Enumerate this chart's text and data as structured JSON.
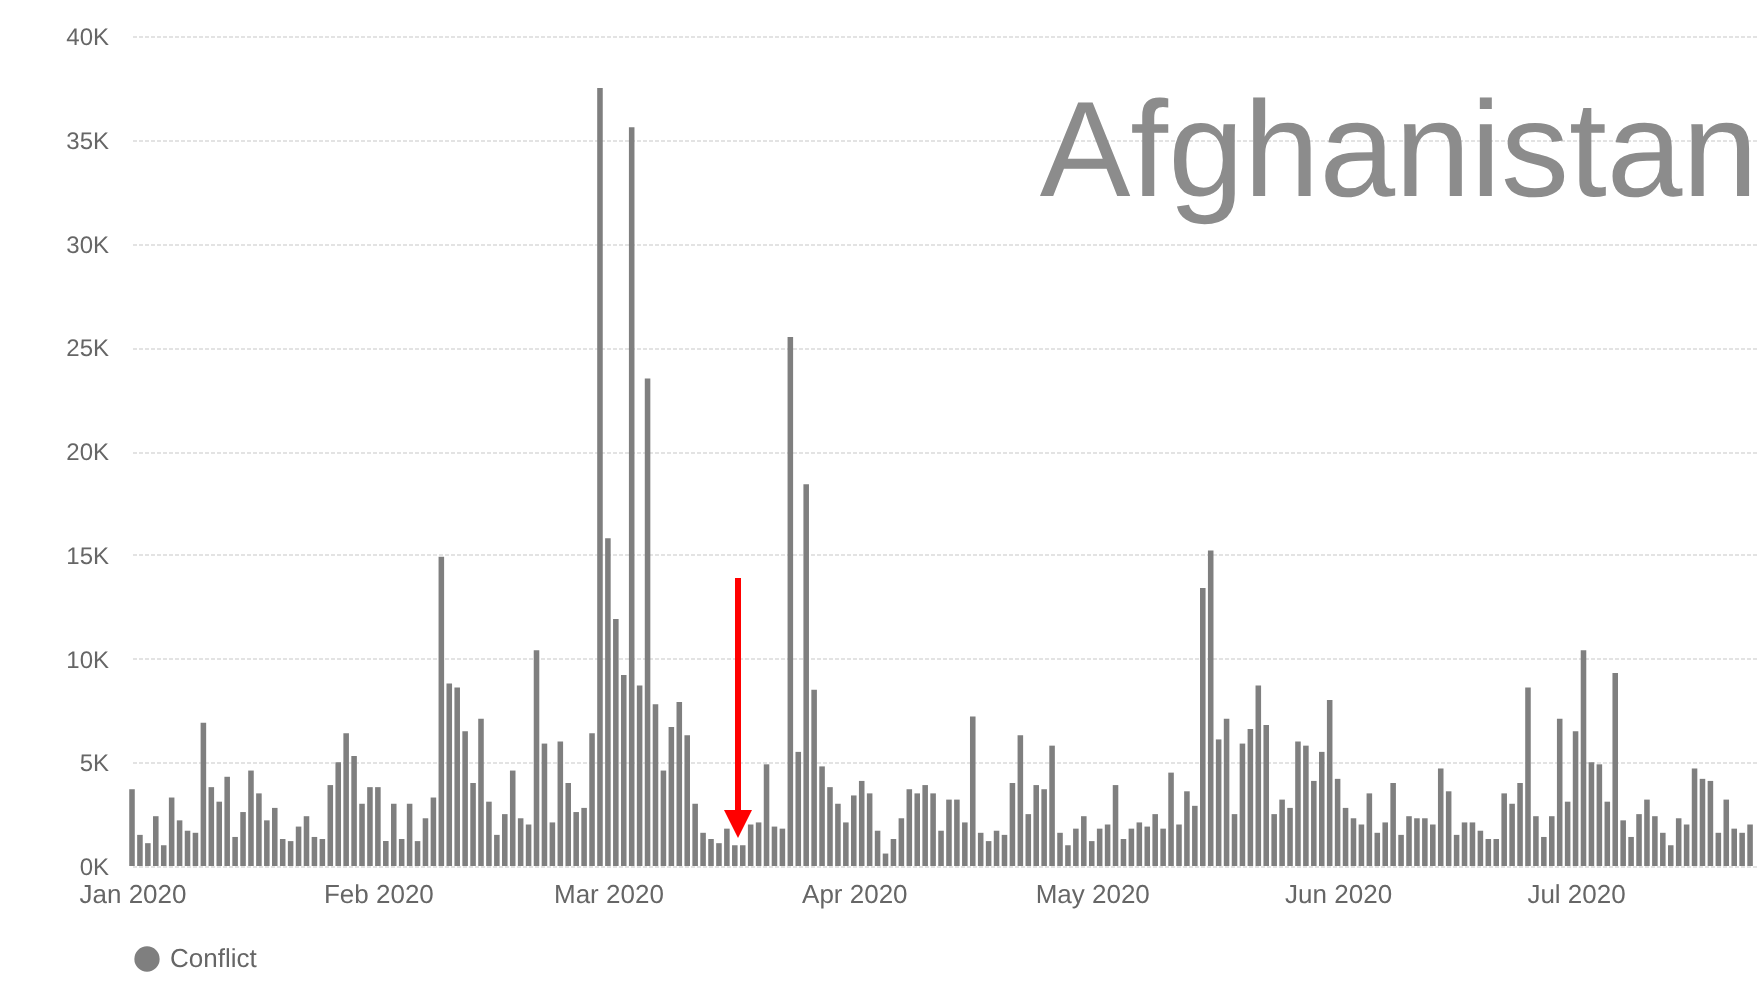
{
  "chart_data": {
    "type": "bar",
    "title": "Afghanistan",
    "x": [
      "2020-01-01",
      "2020-01-02",
      "2020-01-03",
      "2020-01-04",
      "2020-01-05",
      "2020-01-06",
      "2020-01-07",
      "2020-01-08",
      "2020-01-09",
      "2020-01-10",
      "2020-01-11",
      "2020-01-12",
      "2020-01-13",
      "2020-01-14",
      "2020-01-15",
      "2020-01-16",
      "2020-01-17",
      "2020-01-18",
      "2020-01-19",
      "2020-01-20",
      "2020-01-21",
      "2020-01-22",
      "2020-01-23",
      "2020-01-24",
      "2020-01-25",
      "2020-01-26",
      "2020-01-27",
      "2020-01-28",
      "2020-01-29",
      "2020-01-30",
      "2020-01-31",
      "2020-02-01",
      "2020-02-02",
      "2020-02-03",
      "2020-02-04",
      "2020-02-05",
      "2020-02-06",
      "2020-02-07",
      "2020-02-08",
      "2020-02-09",
      "2020-02-10",
      "2020-02-11",
      "2020-02-12",
      "2020-02-13",
      "2020-02-14",
      "2020-02-15",
      "2020-02-16",
      "2020-02-17",
      "2020-02-18",
      "2020-02-19",
      "2020-02-20",
      "2020-02-21",
      "2020-02-22",
      "2020-02-23",
      "2020-02-24",
      "2020-02-25",
      "2020-02-26",
      "2020-02-27",
      "2020-02-28",
      "2020-02-29",
      "2020-03-01",
      "2020-03-02",
      "2020-03-03",
      "2020-03-04",
      "2020-03-05",
      "2020-03-06",
      "2020-03-07",
      "2020-03-08",
      "2020-03-09",
      "2020-03-10",
      "2020-03-11",
      "2020-03-12",
      "2020-03-13",
      "2020-03-14",
      "2020-03-15",
      "2020-03-16",
      "2020-03-17",
      "2020-03-18",
      "2020-03-19",
      "2020-03-20",
      "2020-03-21",
      "2020-03-22",
      "2020-03-23",
      "2020-03-24",
      "2020-03-25",
      "2020-03-26",
      "2020-03-27",
      "2020-03-28",
      "2020-03-29",
      "2020-03-30",
      "2020-03-31",
      "2020-04-01",
      "2020-04-02",
      "2020-04-03",
      "2020-04-04",
      "2020-04-05",
      "2020-04-06",
      "2020-04-07",
      "2020-04-08",
      "2020-04-09",
      "2020-04-10",
      "2020-04-11",
      "2020-04-12",
      "2020-04-13",
      "2020-04-14",
      "2020-04-15",
      "2020-04-16",
      "2020-04-17",
      "2020-04-18",
      "2020-04-19",
      "2020-04-20",
      "2020-04-21",
      "2020-04-22",
      "2020-04-23",
      "2020-04-24",
      "2020-04-25",
      "2020-04-26",
      "2020-04-27",
      "2020-04-28",
      "2020-04-29",
      "2020-04-30",
      "2020-05-01",
      "2020-05-02",
      "2020-05-03",
      "2020-05-04",
      "2020-05-05",
      "2020-05-06",
      "2020-05-07",
      "2020-05-08",
      "2020-05-09",
      "2020-05-10",
      "2020-05-11",
      "2020-05-12",
      "2020-05-13",
      "2020-05-14",
      "2020-05-15",
      "2020-05-16",
      "2020-05-17",
      "2020-05-18",
      "2020-05-19",
      "2020-05-20",
      "2020-05-21",
      "2020-05-22",
      "2020-05-23",
      "2020-05-24",
      "2020-05-25",
      "2020-05-26",
      "2020-05-27",
      "2020-05-28",
      "2020-05-29",
      "2020-05-30",
      "2020-05-31",
      "2020-06-01",
      "2020-06-02",
      "2020-06-03",
      "2020-06-04",
      "2020-06-05",
      "2020-06-06",
      "2020-06-07",
      "2020-06-08",
      "2020-06-09",
      "2020-06-10",
      "2020-06-11",
      "2020-06-12",
      "2020-06-13",
      "2020-06-14",
      "2020-06-15",
      "2020-06-16",
      "2020-06-17",
      "2020-06-18",
      "2020-06-19",
      "2020-06-20",
      "2020-06-21",
      "2020-06-22",
      "2020-06-23",
      "2020-06-24",
      "2020-06-25",
      "2020-06-26",
      "2020-06-27",
      "2020-06-28",
      "2020-06-29",
      "2020-06-30",
      "2020-07-01",
      "2020-07-02",
      "2020-07-03",
      "2020-07-04",
      "2020-07-05",
      "2020-07-06",
      "2020-07-07",
      "2020-07-08",
      "2020-07-09",
      "2020-07-10",
      "2020-07-11",
      "2020-07-12",
      "2020-07-13",
      "2020-07-14",
      "2020-07-15",
      "2020-07-16",
      "2020-07-17",
      "2020-07-18",
      "2020-07-19",
      "2020-07-20",
      "2020-07-21",
      "2020-07-22",
      "2020-07-23"
    ],
    "series": [
      {
        "name": "Conflict",
        "color": "#7f7f7f",
        "values": [
          3700,
          1500,
          1100,
          2400,
          1000,
          3300,
          2200,
          1700,
          1600,
          6900,
          3800,
          3100,
          4300,
          1400,
          2600,
          4600,
          3500,
          2200,
          2800,
          1300,
          1200,
          1900,
          2400,
          1400,
          1300,
          3900,
          5000,
          6400,
          5300,
          3000,
          3800,
          3800,
          1200,
          3000,
          1300,
          3000,
          1200,
          2300,
          3300,
          14900,
          8800,
          8600,
          6500,
          4000,
          7100,
          3100,
          1500,
          2500,
          4600,
          2300,
          2000,
          10400,
          5900,
          2100,
          6000,
          4000,
          2600,
          2800,
          6400,
          37500,
          15800,
          11900,
          9200,
          35600,
          8700,
          23500,
          7800,
          4600,
          6700,
          7900,
          6300,
          3000,
          1600,
          1300,
          1100,
          1800,
          1000,
          1000,
          2000,
          2100,
          4900,
          1900,
          1800,
          25500,
          5500,
          18400,
          8500,
          4800,
          3800,
          3000,
          2100,
          3400,
          4100,
          3500,
          1700,
          600,
          1300,
          2300,
          3700,
          3500,
          3900,
          3500,
          1700,
          3200,
          3200,
          2100,
          7200,
          1600,
          1200,
          1700,
          1500,
          4000,
          6300,
          2500,
          3900,
          3700,
          5800,
          1600,
          1000,
          1800,
          2400,
          1200,
          1800,
          2000,
          3900,
          1300,
          1800,
          2100,
          1900,
          2500,
          1800,
          4500,
          2000,
          3600,
          2900,
          13400,
          15200,
          6100,
          7100,
          2500,
          5900,
          6600,
          8700,
          6800,
          2500,
          3200,
          2800,
          6000,
          5800,
          4100,
          5500,
          8000,
          4200,
          2800,
          2300,
          2000,
          3500,
          1600,
          2100,
          4000,
          1500,
          2400,
          2300,
          2300,
          2000,
          4700,
          3600,
          1500,
          2100,
          2100,
          1700,
          1300,
          1300,
          3500,
          3000,
          4000,
          8600,
          2400,
          1400,
          2400,
          7100,
          3100,
          6500,
          10400,
          5000,
          4900,
          3100,
          9300,
          2200,
          1400,
          2500,
          3200,
          2400,
          1600,
          1000,
          2300,
          2000,
          4700,
          4200,
          4100,
          1600,
          3200,
          1800,
          1600,
          2000
        ]
      }
    ],
    "xlim": [
      "2020-01-01",
      "2020-07-24"
    ],
    "xticks": [
      {
        "value": "2020-01-01",
        "label": "Jan 2020"
      },
      {
        "value": "2020-02-01",
        "label": "Feb 2020"
      },
      {
        "value": "2020-03-01",
        "label": "Mar 2020"
      },
      {
        "value": "2020-04-01",
        "label": "Apr 2020"
      },
      {
        "value": "2020-05-01",
        "label": "May 2020"
      },
      {
        "value": "2020-06-01",
        "label": "Jun 2020"
      },
      {
        "value": "2020-07-01",
        "label": "Jul 2020"
      }
    ],
    "ylim": [
      0,
      40000
    ],
    "yticks": [
      {
        "value": 0,
        "label": "0K"
      },
      {
        "value": 5000,
        "label": "5K"
      },
      {
        "value": 10000,
        "label": "10K"
      },
      {
        "value": 15000,
        "label": "15K"
      },
      {
        "value": 20000,
        "label": "20K"
      },
      {
        "value": 25000,
        "label": "25K"
      },
      {
        "value": 30000,
        "label": "30K"
      },
      {
        "value": 35000,
        "label": "35K"
      },
      {
        "value": 40000,
        "label": "40K"
      }
    ],
    "grid": "y",
    "legend": "bottom"
  }
}
